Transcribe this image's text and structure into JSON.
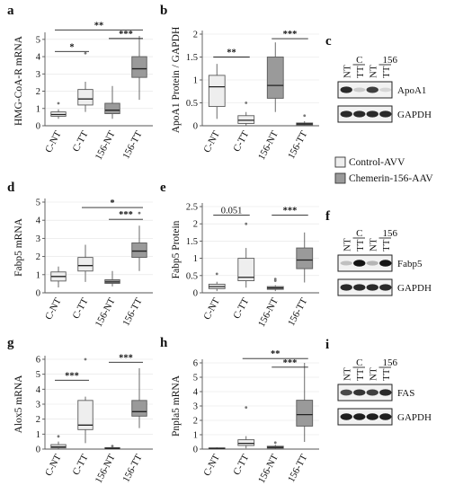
{
  "colors": {
    "control": "#eeeeee",
    "chemerin": "#9a9a9a",
    "stroke": "#5a5a5a"
  },
  "legend": {
    "items": [
      {
        "label": "Control-AVV",
        "group": "control"
      },
      {
        "label": "Chemerin-156-AAV",
        "group": "chemerin"
      }
    ]
  },
  "chart_data": [
    {
      "panel": "a",
      "type": "box",
      "ylabel": "HMG-CoA-R mRNA",
      "ylim": [
        0,
        5.2
      ],
      "yticks": [
        0,
        1,
        2,
        3,
        4,
        5
      ],
      "categories": [
        "C-NT",
        "C-TT",
        "156-NT",
        "156-TT"
      ],
      "groups": [
        "control",
        "control",
        "chemerin",
        "chemerin"
      ],
      "boxes": [
        {
          "min": 0.4,
          "q1": 0.55,
          "median": 0.65,
          "q3": 0.8,
          "max": 0.95,
          "outliers": [
            1.3
          ]
        },
        {
          "min": 0.8,
          "q1": 1.2,
          "median": 1.55,
          "q3": 2.1,
          "max": 2.55,
          "outliers": [
            4.2
          ]
        },
        {
          "min": 0.4,
          "q1": 0.7,
          "median": 0.9,
          "q3": 1.3,
          "max": 2.3,
          "outliers": []
        },
        {
          "min": 1.5,
          "q1": 2.8,
          "median": 3.3,
          "q3": 4.0,
          "max": 5.2,
          "outliers": []
        }
      ],
      "brackets": [
        {
          "from": 0,
          "to": 1,
          "y": 4.3,
          "label": "*"
        },
        {
          "from": 0,
          "to": 3,
          "y": 5.55,
          "label": "**"
        },
        {
          "from": 2,
          "to": 3,
          "y": 5.05,
          "label": "***"
        }
      ]
    },
    {
      "panel": "b",
      "type": "box",
      "ylabel": "ApoA1 Protein / GAPDH",
      "ylim": [
        0,
        2.0
      ],
      "yticks": [
        0,
        0.5,
        1.0,
        1.5,
        2.0
      ],
      "categories": [
        "C-NT",
        "C-TT",
        "156-NT",
        "156-TT"
      ],
      "groups": [
        "control",
        "control",
        "chemerin",
        "chemerin"
      ],
      "boxes": [
        {
          "min": 0.15,
          "q1": 0.42,
          "median": 0.85,
          "q3": 1.1,
          "max": 1.35,
          "outliers": []
        },
        {
          "min": 0.0,
          "q1": 0.05,
          "median": 0.12,
          "q3": 0.22,
          "max": 0.3,
          "outliers": [
            0.5
          ]
        },
        {
          "min": 0.3,
          "q1": 0.6,
          "median": 0.88,
          "q3": 1.5,
          "max": 1.82,
          "outliers": []
        },
        {
          "min": 0.0,
          "q1": 0.02,
          "median": 0.04,
          "q3": 0.06,
          "max": 0.1,
          "outliers": [
            0.22
          ]
        }
      ],
      "brackets": [
        {
          "from": 0,
          "to": 1,
          "y": 1.5,
          "label": "**"
        },
        {
          "from": 2,
          "to": 3,
          "y": 1.9,
          "label": "***"
        }
      ]
    },
    {
      "panel": "d",
      "type": "box",
      "ylabel": "Fabp5 mRNA",
      "ylim": [
        0,
        5
      ],
      "yticks": [
        0,
        1,
        2,
        3,
        4,
        5
      ],
      "categories": [
        "C-NT",
        "C-TT",
        "156-NT",
        "156-TT"
      ],
      "groups": [
        "control",
        "control",
        "chemerin",
        "chemerin"
      ],
      "boxes": [
        {
          "min": 0.3,
          "q1": 0.65,
          "median": 0.9,
          "q3": 1.15,
          "max": 1.45,
          "outliers": []
        },
        {
          "min": 0.6,
          "q1": 1.2,
          "median": 1.5,
          "q3": 1.95,
          "max": 2.65,
          "outliers": []
        },
        {
          "min": 0.35,
          "q1": 0.52,
          "median": 0.6,
          "q3": 0.72,
          "max": 1.2,
          "outliers": []
        },
        {
          "min": 1.2,
          "q1": 1.95,
          "median": 2.3,
          "q3": 2.75,
          "max": 3.7,
          "outliers": [
            4.4
          ]
        }
      ],
      "brackets": [
        {
          "from": 1,
          "to": 3,
          "y": 4.7,
          "label": "*"
        },
        {
          "from": 2,
          "to": 3,
          "y": 4.05,
          "label": "***"
        }
      ]
    },
    {
      "panel": "e",
      "type": "box",
      "ylabel": "Fabp5 Protein",
      "ylim": [
        0,
        2.5
      ],
      "yticks": [
        0,
        0.5,
        1.0,
        1.5,
        2.0,
        2.5
      ],
      "categories": [
        "C-NT",
        "C-TT",
        "156-NT",
        "156-TT"
      ],
      "groups": [
        "control",
        "control",
        "chemerin",
        "chemerin"
      ],
      "boxes": [
        {
          "min": 0.05,
          "q1": 0.12,
          "median": 0.18,
          "q3": 0.25,
          "max": 0.32,
          "outliers": [
            0.55
          ]
        },
        {
          "min": 0.15,
          "q1": 0.35,
          "median": 0.45,
          "q3": 1.0,
          "max": 1.3,
          "outliers": [
            2.0
          ]
        },
        {
          "min": 0.05,
          "q1": 0.1,
          "median": 0.14,
          "q3": 0.18,
          "max": 0.22,
          "outliers": [
            0.35,
            0.4
          ]
        },
        {
          "min": 0.3,
          "q1": 0.7,
          "median": 0.95,
          "q3": 1.3,
          "max": 1.75,
          "outliers": []
        }
      ],
      "brackets": [
        {
          "from": 0,
          "to": 1,
          "y": 2.25,
          "label": "0.051"
        },
        {
          "from": 2,
          "to": 3,
          "y": 2.25,
          "label": "***"
        }
      ]
    },
    {
      "panel": "g",
      "type": "box",
      "ylabel": "Alox5 mRNA",
      "ylim": [
        0,
        6
      ],
      "yticks": [
        0,
        1,
        2,
        3,
        4,
        5,
        6
      ],
      "categories": [
        "C-NT",
        "C-TT",
        "156-NT",
        "156-TT"
      ],
      "groups": [
        "control",
        "control",
        "chemerin",
        "chemerin"
      ],
      "boxes": [
        {
          "min": 0.0,
          "q1": 0.08,
          "median": 0.15,
          "q3": 0.3,
          "max": 0.5,
          "outliers": [
            0.85
          ]
        },
        {
          "min": 0.4,
          "q1": 1.3,
          "median": 1.6,
          "q3": 3.25,
          "max": 3.5,
          "outliers": [
            6.0
          ]
        },
        {
          "min": 0.0,
          "q1": 0.02,
          "median": 0.05,
          "q3": 0.1,
          "max": 0.15,
          "outliers": [
            0.2
          ]
        },
        {
          "min": 1.4,
          "q1": 2.2,
          "median": 2.5,
          "q3": 3.25,
          "max": 5.4,
          "outliers": []
        }
      ],
      "brackets": [
        {
          "from": 0,
          "to": 1,
          "y": 4.6,
          "label": "***"
        },
        {
          "from": 2,
          "to": 3,
          "y": 5.8,
          "label": "***"
        }
      ]
    },
    {
      "panel": "h",
      "type": "box",
      "ylabel": "Pnpla5 mRNA",
      "ylim": [
        0,
        6
      ],
      "yticks": [
        0,
        1,
        2,
        3,
        4,
        5,
        6
      ],
      "categories": [
        "C-NT",
        "C-TT",
        "156-NT",
        "156-TT"
      ],
      "groups": [
        "control",
        "control",
        "chemerin",
        "chemerin"
      ],
      "boxes": [
        {
          "min": 0.0,
          "q1": 0.02,
          "median": 0.05,
          "q3": 0.08,
          "max": 0.12,
          "outliers": []
        },
        {
          "min": 0.05,
          "q1": 0.25,
          "median": 0.4,
          "q3": 0.65,
          "max": 0.9,
          "outliers": [
            2.9
          ]
        },
        {
          "min": 0.0,
          "q1": 0.07,
          "median": 0.12,
          "q3": 0.2,
          "max": 0.3,
          "outliers": [
            0.45
          ]
        },
        {
          "min": 0.5,
          "q1": 1.6,
          "median": 2.4,
          "q3": 3.4,
          "max": 6.0,
          "outliers": []
        }
      ],
      "brackets": [
        {
          "from": 1,
          "to": 3,
          "y": 6.3,
          "label": "**"
        },
        {
          "from": 2,
          "to": 3,
          "y": 5.7,
          "label": "***"
        }
      ]
    }
  ],
  "blots": [
    {
      "panel": "c",
      "treatments": [
        "NT",
        "TT",
        "NT",
        "TT"
      ],
      "groups": [
        "C",
        "156"
      ],
      "bands": [
        {
          "label": "ApoA1",
          "intensities": [
            0.9,
            0.15,
            0.8,
            0.1
          ]
        },
        {
          "label": "GAPDH",
          "intensities": [
            0.9,
            0.9,
            0.9,
            0.9
          ]
        }
      ]
    },
    {
      "panel": "f",
      "treatments": [
        "NT",
        "TT",
        "NT",
        "TT"
      ],
      "groups": [
        "C",
        "156"
      ],
      "bands": [
        {
          "label": "Fabp5",
          "intensities": [
            0.2,
            1.0,
            0.25,
            1.0
          ]
        },
        {
          "label": "GAPDH",
          "intensities": [
            0.9,
            0.9,
            0.9,
            0.9
          ]
        }
      ]
    },
    {
      "panel": "i",
      "treatments": [
        "NT",
        "TT",
        "NT",
        "TT"
      ],
      "groups": [
        "C",
        "156"
      ],
      "bands": [
        {
          "label": "FAS",
          "intensities": [
            0.75,
            0.85,
            0.8,
            0.9
          ]
        },
        {
          "label": "GAPDH",
          "intensities": [
            0.95,
            0.95,
            0.95,
            0.95
          ]
        }
      ]
    }
  ]
}
